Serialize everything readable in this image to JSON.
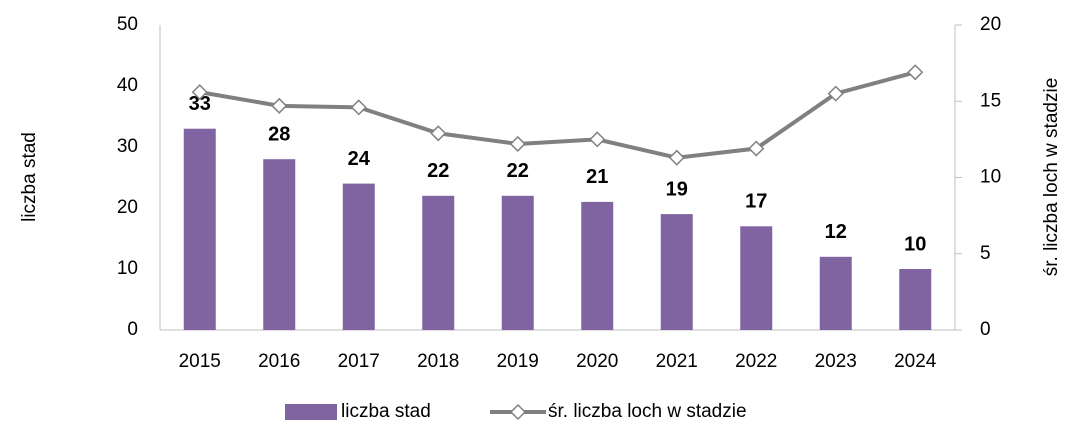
{
  "chart_data": {
    "type": "bar_line",
    "categories": [
      "2015",
      "2016",
      "2017",
      "2018",
      "2019",
      "2020",
      "2021",
      "2022",
      "2023",
      "2024"
    ],
    "series": [
      {
        "name": "liczba stad",
        "type": "bar",
        "color": "#8064a2",
        "values": [
          33,
          28,
          24,
          22,
          22,
          21,
          19,
          17,
          12,
          10
        ]
      },
      {
        "name": "śr. liczba loch w stadzie",
        "type": "line",
        "axis": "y2",
        "color": "#808080",
        "values": [
          15.6,
          14.7,
          14.6,
          12.9,
          12.2,
          12.5,
          11.3,
          11.9,
          15.5,
          16.9
        ]
      }
    ],
    "ylabel": "liczba stad",
    "y2label": "śr. liczba loch w stadzie",
    "ylim": [
      0,
      50
    ],
    "yticks": [
      0,
      10,
      20,
      30,
      40,
      50
    ],
    "y2lim": [
      0,
      20
    ],
    "y2ticks": [
      0,
      5,
      10,
      15,
      20
    ],
    "legend": "bottom"
  }
}
